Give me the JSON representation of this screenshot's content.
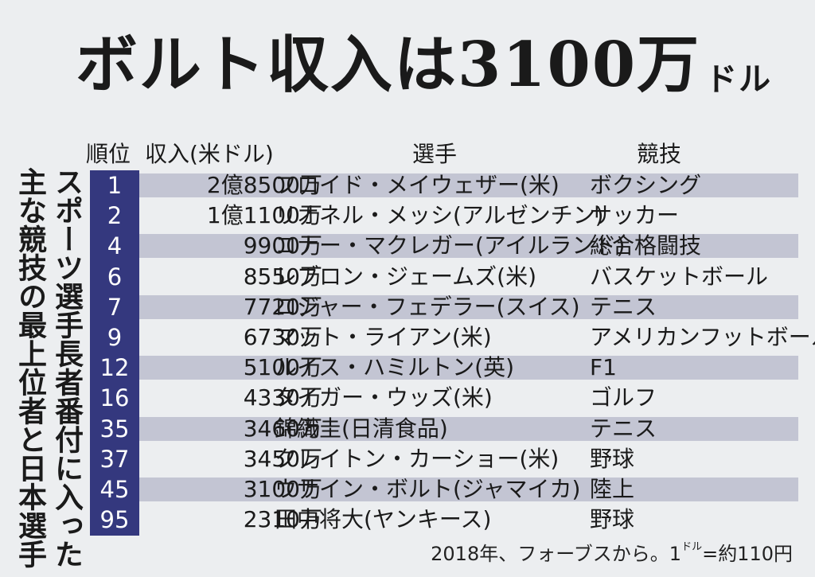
{
  "headline": {
    "text": "ボルト収入は3100万",
    "unit": "ドル"
  },
  "side_caption": {
    "line1": "スポーツ選手長者番付に入った",
    "line2": "主な競技の最上位者と日本選手"
  },
  "table": {
    "headers": {
      "rank": "順位",
      "income": "収入(米ドル)",
      "player": "選手",
      "sport": "競技"
    },
    "rows": [
      {
        "rank": "1",
        "income": "2億8500万",
        "player": "フロイド・メイウェザー(米)",
        "sport": "ボクシング"
      },
      {
        "rank": "2",
        "income": "1億1100万",
        "player": "リオネル・メッシ(アルゼンチン)",
        "sport": "サッカー"
      },
      {
        "rank": "4",
        "income": "9900万",
        "player": "コナー・マクレガー(アイルランド)",
        "sport": "総合格闘技"
      },
      {
        "rank": "6",
        "income": "8550万",
        "player": "レブロン・ジェームズ(米)",
        "sport": "バスケットボール"
      },
      {
        "rank": "7",
        "income": "7720万",
        "player": "ロジャー・フェデラー(スイス)",
        "sport": "テニス"
      },
      {
        "rank": "9",
        "income": "6730万",
        "player": "マット・ライアン(米)",
        "sport": "アメリカンフットボール"
      },
      {
        "rank": "12",
        "income": "5100万",
        "player": "ルイス・ハミルトン(英)",
        "sport": "F1"
      },
      {
        "rank": "16",
        "income": "4330万",
        "player": "タイガー・ウッズ(米)",
        "sport": "ゴルフ"
      },
      {
        "rank": "35",
        "income": "3460万",
        "player": "錦織圭(日清食品)",
        "sport": "テニス"
      },
      {
        "rank": "37",
        "income": "3450万",
        "player": "クレイトン・カーショー(米)",
        "sport": "野球"
      },
      {
        "rank": "45",
        "income": "3100万",
        "player": "ウサイン・ボルト(ジャマイカ)",
        "sport": "陸上"
      },
      {
        "rank": "95",
        "income": "2310万",
        "player": "田中将大(ヤンキース)",
        "sport": "野球"
      }
    ]
  },
  "footnote": {
    "pre": "2018年、フォーブスから。1",
    "unit": "ドル",
    "post": "=約110円"
  },
  "colors": {
    "rank_column": "#34387e",
    "stripe": "#c3c5d3",
    "paper": "#eceef0"
  }
}
